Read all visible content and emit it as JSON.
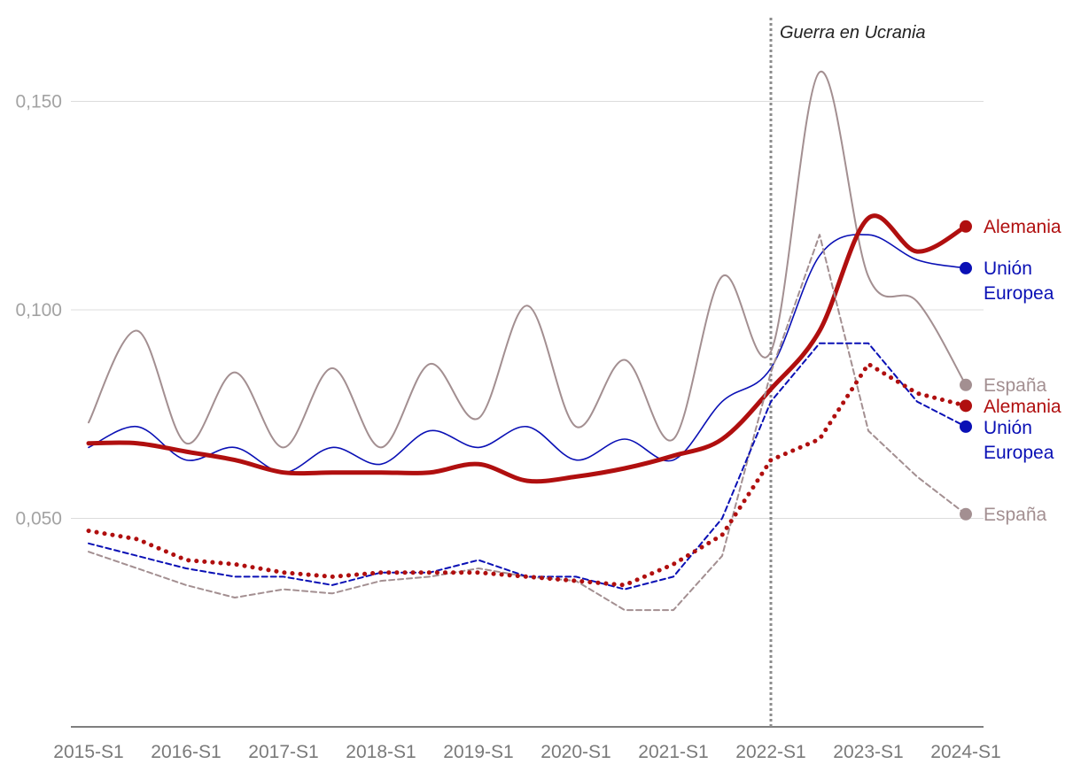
{
  "chart_data": {
    "type": "line",
    "title": "",
    "xlabel": "",
    "ylabel": "",
    "ylim": [
      0.0,
      0.165
    ],
    "y_ticks": [
      {
        "value": 0.05,
        "label": "0,050"
      },
      {
        "value": 0.1,
        "label": "0,100"
      },
      {
        "value": 0.15,
        "label": "0,150"
      }
    ],
    "x_ticks": [
      {
        "value": 2015.0,
        "label": "2015-S1"
      },
      {
        "value": 2016.0,
        "label": "2016-S1"
      },
      {
        "value": 2017.0,
        "label": "2017-S1"
      },
      {
        "value": 2018.0,
        "label": "2018-S1"
      },
      {
        "value": 2019.0,
        "label": "2019-S1"
      },
      {
        "value": 2020.0,
        "label": "2020-S1"
      },
      {
        "value": 2021.0,
        "label": "2021-S1"
      },
      {
        "value": 2022.0,
        "label": "2022-S1"
      },
      {
        "value": 2023.0,
        "label": "2023-S1"
      },
      {
        "value": 2024.0,
        "label": "2024-S1"
      }
    ],
    "xlim": [
      2015.0,
      2024.0
    ],
    "annotation": {
      "x": 2022.0,
      "label": "Guerra en Ucrania"
    },
    "series": [
      {
        "id": "espana_solid",
        "name": "España",
        "color": "#a38f91",
        "style": "solid",
        "weight": 2,
        "x": [
          2015.0,
          2015.5,
          2016.0,
          2016.5,
          2017.0,
          2017.5,
          2018.0,
          2018.5,
          2019.0,
          2019.5,
          2020.0,
          2020.5,
          2021.0,
          2021.5,
          2022.0,
          2022.5,
          2023.0,
          2023.5,
          2024.0
        ],
        "values": [
          0.073,
          0.095,
          0.068,
          0.085,
          0.067,
          0.086,
          0.067,
          0.087,
          0.074,
          0.101,
          0.072,
          0.088,
          0.069,
          0.108,
          0.09,
          0.157,
          0.108,
          0.102,
          0.082
        ]
      },
      {
        "id": "ue_solid",
        "name": "Unión Europea",
        "color": "#0a10b5",
        "style": "solid",
        "weight": 1.6,
        "x": [
          2015.0,
          2015.5,
          2016.0,
          2016.5,
          2017.0,
          2017.5,
          2018.0,
          2018.5,
          2019.0,
          2019.5,
          2020.0,
          2020.5,
          2021.0,
          2021.5,
          2022.0,
          2022.5,
          2023.0,
          2023.5,
          2024.0
        ],
        "values": [
          0.067,
          0.072,
          0.064,
          0.067,
          0.061,
          0.067,
          0.063,
          0.071,
          0.067,
          0.072,
          0.064,
          0.069,
          0.064,
          0.078,
          0.086,
          0.113,
          0.118,
          0.112,
          0.11
        ]
      },
      {
        "id": "alemania_solid",
        "name": "Alemania",
        "color": "#b00f0f",
        "style": "solid",
        "weight": 5,
        "x": [
          2015.0,
          2015.5,
          2016.0,
          2016.5,
          2017.0,
          2017.5,
          2018.0,
          2018.5,
          2019.0,
          2019.5,
          2020.0,
          2020.5,
          2021.0,
          2021.5,
          2022.0,
          2022.5,
          2023.0,
          2023.5,
          2024.0
        ],
        "values": [
          0.068,
          0.068,
          0.066,
          0.064,
          0.061,
          0.061,
          0.061,
          0.061,
          0.063,
          0.059,
          0.06,
          0.062,
          0.065,
          0.069,
          0.081,
          0.095,
          0.122,
          0.114,
          0.12
        ]
      },
      {
        "id": "espana_dashed",
        "name": "España",
        "color": "#a38f91",
        "style": "dashed",
        "weight": 2,
        "x": [
          2015.0,
          2015.5,
          2016.0,
          2016.5,
          2017.0,
          2017.5,
          2018.0,
          2018.5,
          2019.0,
          2019.5,
          2020.0,
          2020.5,
          2021.0,
          2021.5,
          2022.0,
          2022.5,
          2023.0,
          2023.5,
          2024.0
        ],
        "values": [
          0.042,
          0.038,
          0.034,
          0.031,
          0.033,
          0.032,
          0.035,
          0.036,
          0.038,
          0.036,
          0.035,
          0.028,
          0.028,
          0.041,
          0.085,
          0.118,
          0.071,
          0.06,
          0.051
        ]
      },
      {
        "id": "ue_dashed",
        "name": "Unión Europea",
        "color": "#0a10b5",
        "style": "dashed",
        "weight": 2,
        "x": [
          2015.0,
          2015.5,
          2016.0,
          2016.5,
          2017.0,
          2017.5,
          2018.0,
          2018.5,
          2019.0,
          2019.5,
          2020.0,
          2020.5,
          2021.0,
          2021.5,
          2022.0,
          2022.5,
          2023.0,
          2023.5,
          2024.0
        ],
        "values": [
          0.044,
          0.041,
          0.038,
          0.036,
          0.036,
          0.034,
          0.037,
          0.037,
          0.04,
          0.036,
          0.036,
          0.033,
          0.036,
          0.05,
          0.078,
          0.092,
          0.092,
          0.078,
          0.072
        ]
      },
      {
        "id": "alemania_dotted",
        "name": "Alemania",
        "color": "#b00f0f",
        "style": "dotted",
        "weight": 5,
        "x": [
          2015.0,
          2015.5,
          2016.0,
          2016.5,
          2017.0,
          2017.5,
          2018.0,
          2018.5,
          2019.0,
          2019.5,
          2020.0,
          2020.5,
          2021.0,
          2021.5,
          2022.0,
          2022.5,
          2023.0,
          2023.5,
          2024.0
        ],
        "values": [
          0.047,
          0.045,
          0.04,
          0.039,
          0.037,
          0.036,
          0.037,
          0.037,
          0.037,
          0.036,
          0.035,
          0.034,
          0.039,
          0.046,
          0.064,
          0.069,
          0.087,
          0.08,
          0.077
        ]
      }
    ],
    "end_labels": [
      {
        "series": "alemania_solid",
        "lines": [
          "Alemania"
        ]
      },
      {
        "series": "ue_solid",
        "lines": [
          "Unión",
          "Europea"
        ]
      },
      {
        "series": "espana_solid",
        "lines": [
          "España"
        ]
      },
      {
        "series": "alemania_dotted",
        "lines": [
          "Alemania"
        ]
      },
      {
        "series": "ue_dashed",
        "lines": [
          "Unión",
          "Europea"
        ]
      },
      {
        "series": "espana_dashed",
        "lines": [
          "España"
        ]
      }
    ]
  }
}
